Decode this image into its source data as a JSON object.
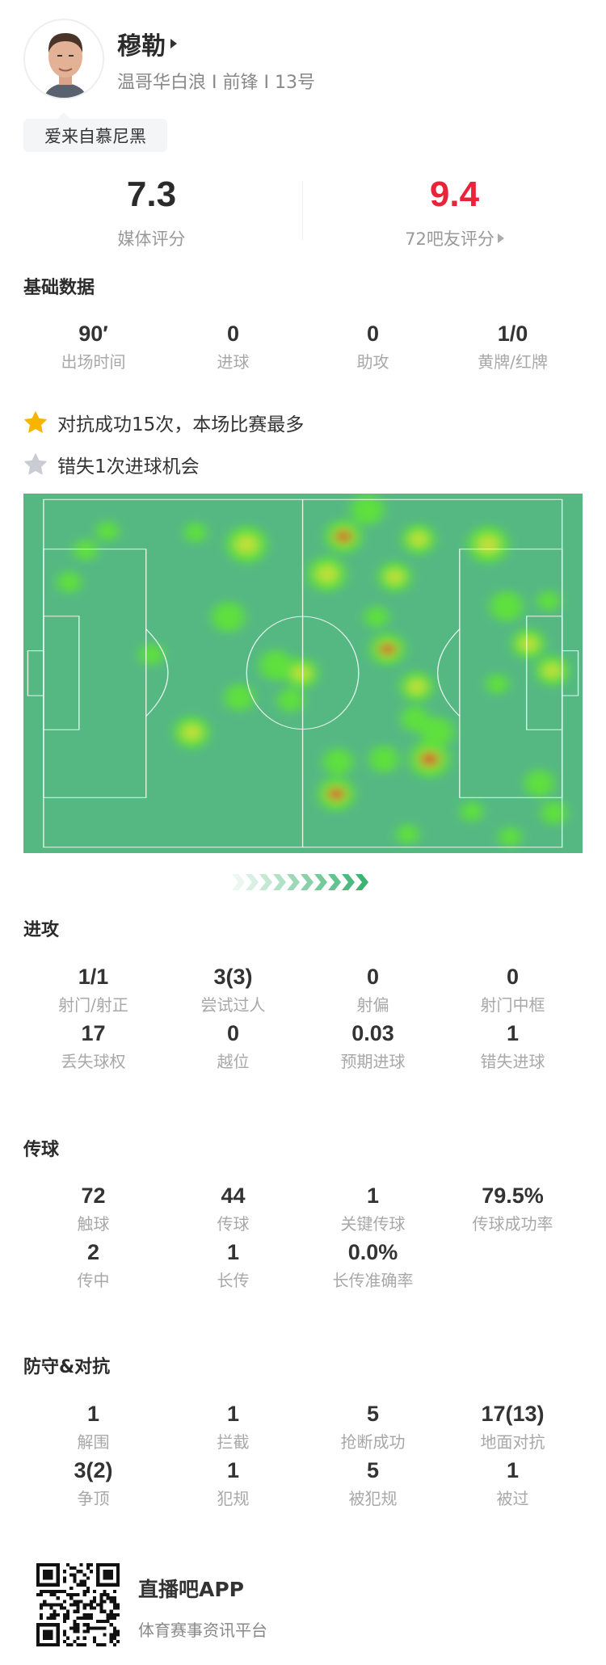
{
  "player": {
    "name": "穆勒",
    "subtitle": "温哥华白浪 I 前锋 I 13号",
    "tag": "爱来自慕尼黑",
    "avatar_icon": "player-photo"
  },
  "ratings": {
    "media": {
      "value": "7.3",
      "label": "媒体评分"
    },
    "fans": {
      "value": "9.4",
      "label": "72吧友评分",
      "color": "#e8233a"
    }
  },
  "basic": {
    "title": "基础数据",
    "stats": [
      {
        "value": "90′",
        "label": "出场时间"
      },
      {
        "value": "0",
        "label": "进球"
      },
      {
        "value": "0",
        "label": "助攻"
      },
      {
        "value": "1/0",
        "label": "黄牌/红牌"
      }
    ]
  },
  "highlights": [
    {
      "icon": "star-gold-icon",
      "text": "对抗成功15次，本场比赛最多",
      "color": "#f7b500"
    },
    {
      "icon": "star-gray-icon",
      "text": "错失1次进球机会",
      "color": "#c9ccd3"
    }
  ],
  "heatmap": {
    "pitch_color": "#55b883"
  },
  "attack": {
    "title": "进攻",
    "stats": [
      {
        "value": "1/1",
        "label": "射门/射正"
      },
      {
        "value": "3(3)",
        "label": "尝试过人"
      },
      {
        "value": "0",
        "label": "射偏"
      },
      {
        "value": "0",
        "label": "射门中框"
      },
      {
        "value": "17",
        "label": "丢失球权"
      },
      {
        "value": "0",
        "label": "越位"
      },
      {
        "value": "0.03",
        "label": "预期进球"
      },
      {
        "value": "1",
        "label": "错失进球"
      }
    ]
  },
  "passing": {
    "title": "传球",
    "stats": [
      {
        "value": "72",
        "label": "触球"
      },
      {
        "value": "44",
        "label": "传球"
      },
      {
        "value": "1",
        "label": "关键传球"
      },
      {
        "value": "79.5%",
        "label": "传球成功率"
      },
      {
        "value": "2",
        "label": "传中"
      },
      {
        "value": "1",
        "label": "长传"
      },
      {
        "value": "0.0%",
        "label": "长传准确率"
      }
    ]
  },
  "defense": {
    "title": "防守&对抗",
    "stats": [
      {
        "value": "1",
        "label": "解围"
      },
      {
        "value": "1",
        "label": "拦截"
      },
      {
        "value": "5",
        "label": "抢断成功"
      },
      {
        "value": "17(13)",
        "label": "地面对抗"
      },
      {
        "value": "3(2)",
        "label": "争顶"
      },
      {
        "value": "1",
        "label": "犯规"
      },
      {
        "value": "5",
        "label": "被犯规"
      },
      {
        "value": "1",
        "label": "被过"
      }
    ]
  },
  "footer": {
    "app_name": "直播吧APP",
    "app_tagline": "体育赛事资讯平台"
  }
}
